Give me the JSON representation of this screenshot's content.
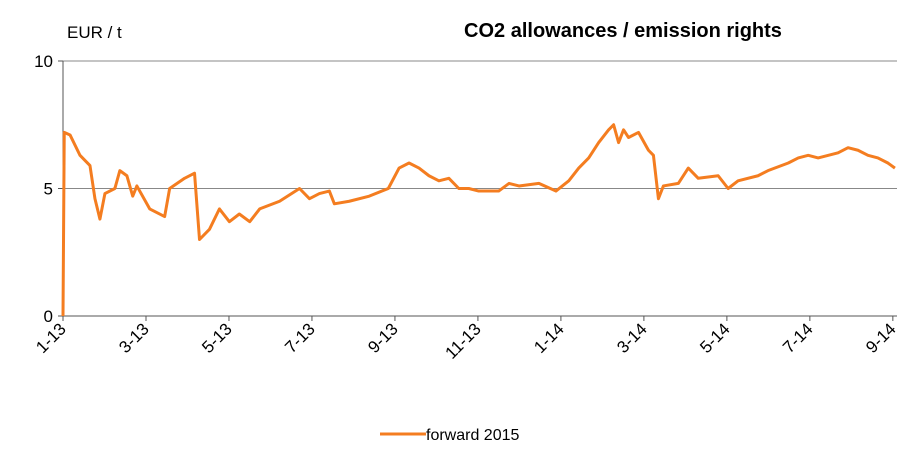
{
  "chart_data": {
    "type": "line",
    "title": "CO2 allowances / emission rights",
    "y_label": "EUR / t",
    "x": [
      0,
      0.03,
      0.17,
      0.41,
      0.65,
      0.77,
      0.89,
      1.01,
      1.25,
      1.37,
      1.54,
      1.68,
      1.78,
      2.09,
      2.45,
      2.57,
      2.93,
      3.17,
      3.29,
      3.53,
      3.77,
      4.01,
      4.25,
      4.5,
      4.74,
      5.22,
      5.7,
      5.94,
      6.18,
      6.42,
      6.54,
      6.9,
      7.38,
      7.84,
      8.1,
      8.34,
      8.58,
      8.82,
      9.06,
      9.3,
      9.54,
      9.78,
      10.02,
      10.5,
      10.75,
      10.99,
      11.47,
      11.88,
      12.19,
      12.43,
      12.67,
      12.91,
      13.15,
      13.27,
      13.39,
      13.51,
      13.63,
      13.87,
      14.11,
      14.23,
      14.35,
      14.47,
      14.83,
      15.07,
      15.31,
      15.79,
      16.03,
      16.27,
      16.75,
      16.99,
      17.48,
      17.72,
      17.96,
      18.2,
      18.68,
      18.92,
      19.16,
      19.4,
      19.64,
      19.88,
      20.05
    ],
    "series": [
      {
        "name": "forward 2015",
        "color": "#f47d20",
        "values": [
          0,
          7.2,
          7.1,
          6.3,
          5.9,
          4.6,
          3.8,
          4.8,
          5.0,
          5.7,
          5.5,
          4.7,
          5.1,
          4.2,
          3.9,
          5.0,
          5.4,
          5.6,
          3.0,
          3.4,
          4.2,
          3.7,
          4.0,
          3.7,
          4.2,
          4.5,
          5.0,
          4.6,
          4.8,
          4.9,
          4.4,
          4.5,
          4.7,
          5.0,
          5.8,
          6.0,
          5.8,
          5.5,
          5.3,
          5.4,
          5.0,
          5.0,
          4.9,
          4.9,
          5.2,
          5.1,
          5.2,
          4.9,
          5.3,
          5.8,
          6.2,
          6.8,
          7.3,
          7.5,
          6.8,
          7.3,
          7.0,
          7.2,
          6.5,
          6.3,
          4.6,
          5.1,
          5.2,
          5.8,
          5.4,
          5.5,
          5.0,
          5.3,
          5.5,
          5.7,
          6.0,
          6.2,
          6.3,
          6.2,
          6.4,
          6.6,
          6.5,
          6.3,
          6.2,
          6.0,
          5.8
        ]
      }
    ],
    "xlim": [
      0,
      20.1
    ],
    "xticks": [
      {
        "value": 0,
        "label": "1-13"
      },
      {
        "value": 2,
        "label": "3-13"
      },
      {
        "value": 4,
        "label": "5-13"
      },
      {
        "value": 6,
        "label": "7-13"
      },
      {
        "value": 8,
        "label": "9-13"
      },
      {
        "value": 10,
        "label": "11-13"
      },
      {
        "value": 12,
        "label": "1-14"
      },
      {
        "value": 14,
        "label": "3-14"
      },
      {
        "value": 16,
        "label": "5-14"
      },
      {
        "value": 18,
        "label": "7-14"
      },
      {
        "value": 20,
        "label": "9-14"
      }
    ],
    "ylim": [
      0,
      10
    ],
    "yticks": [
      0,
      5,
      10
    ],
    "grid": true,
    "legend": "bottom"
  }
}
